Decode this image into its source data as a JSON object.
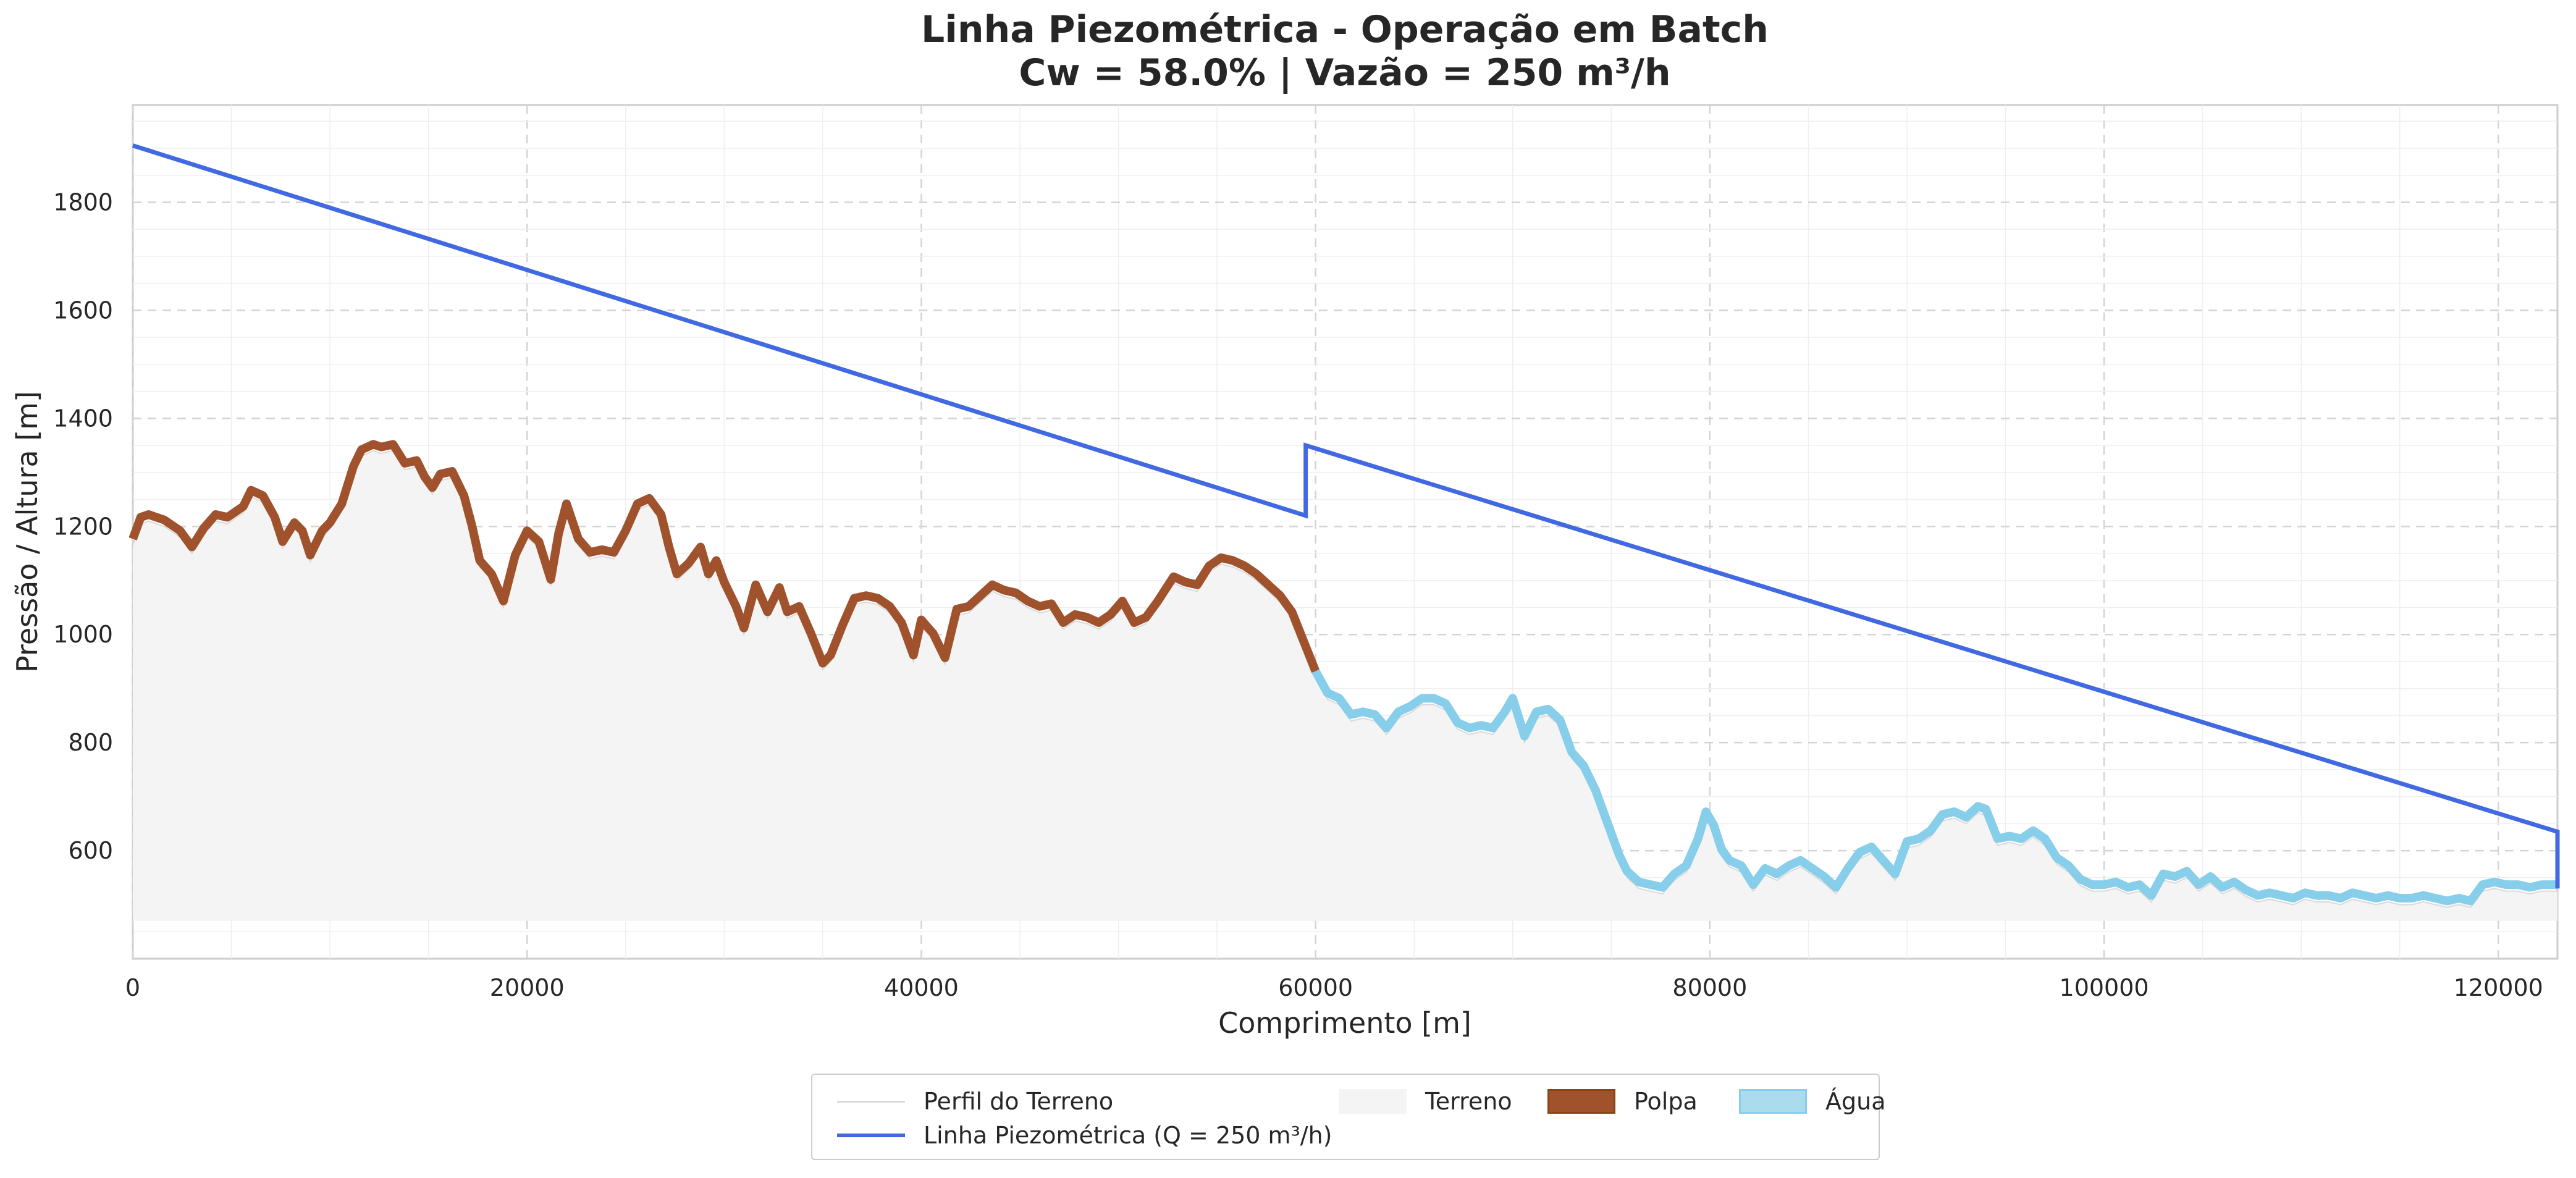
{
  "chart_data": {
    "type": "area",
    "title_line1": "Linha Piezométrica - Operação em Batch",
    "title_line2": "Cw = 58.0% | Vazão = 250 m³/h",
    "xlabel": "Comprimento [m]",
    "ylabel": "Pressão / Altura [m]",
    "xlim": [
      0,
      123000
    ],
    "ylim": [
      400,
      1980
    ],
    "x_ticks": [
      0,
      20000,
      40000,
      60000,
      80000,
      100000,
      120000
    ],
    "y_ticks": [
      600,
      800,
      1000,
      1200,
      1400,
      1600,
      1800
    ],
    "grid": true,
    "legend_position": "bottom-center, below axes",
    "terrain_base": 470,
    "pulp_end_x": 60000,
    "piezometric_line": {
      "name": "Linha Piezométrica (Q = 250 m³/h)",
      "points": [
        [
          0,
          1905
        ],
        [
          59500,
          1220
        ],
        [
          59500,
          1350
        ],
        [
          123000,
          635
        ],
        [
          123000,
          530
        ]
      ]
    },
    "terrain_profile": [
      [
        0,
        1165
      ],
      [
        400,
        1205
      ],
      [
        800,
        1210
      ],
      [
        1600,
        1200
      ],
      [
        2400,
        1180
      ],
      [
        3000,
        1150
      ],
      [
        3600,
        1185
      ],
      [
        4200,
        1210
      ],
      [
        4800,
        1205
      ],
      [
        5600,
        1225
      ],
      [
        6000,
        1255
      ],
      [
        6600,
        1245
      ],
      [
        7200,
        1205
      ],
      [
        7600,
        1160
      ],
      [
        8200,
        1195
      ],
      [
        8600,
        1180
      ],
      [
        9000,
        1135
      ],
      [
        9600,
        1180
      ],
      [
        10000,
        1195
      ],
      [
        10600,
        1230
      ],
      [
        11200,
        1300
      ],
      [
        11600,
        1330
      ],
      [
        12200,
        1340
      ],
      [
        12600,
        1335
      ],
      [
        13200,
        1340
      ],
      [
        13800,
        1305
      ],
      [
        14400,
        1310
      ],
      [
        14800,
        1280
      ],
      [
        15200,
        1260
      ],
      [
        15600,
        1285
      ],
      [
        16200,
        1290
      ],
      [
        16800,
        1245
      ],
      [
        17200,
        1190
      ],
      [
        17600,
        1125
      ],
      [
        18200,
        1100
      ],
      [
        18800,
        1050
      ],
      [
        19400,
        1135
      ],
      [
        20000,
        1180
      ],
      [
        20600,
        1160
      ],
      [
        21200,
        1090
      ],
      [
        21600,
        1175
      ],
      [
        22000,
        1230
      ],
      [
        22600,
        1165
      ],
      [
        23200,
        1140
      ],
      [
        23800,
        1145
      ],
      [
        24400,
        1140
      ],
      [
        25000,
        1180
      ],
      [
        25600,
        1230
      ],
      [
        26200,
        1240
      ],
      [
        26800,
        1210
      ],
      [
        27200,
        1150
      ],
      [
        27600,
        1100
      ],
      [
        28200,
        1120
      ],
      [
        28800,
        1150
      ],
      [
        29200,
        1100
      ],
      [
        29600,
        1125
      ],
      [
        30000,
        1085
      ],
      [
        30600,
        1040
      ],
      [
        31000,
        1000
      ],
      [
        31600,
        1080
      ],
      [
        32200,
        1030
      ],
      [
        32800,
        1075
      ],
      [
        33200,
        1030
      ],
      [
        33800,
        1040
      ],
      [
        34400,
        990
      ],
      [
        35000,
        935
      ],
      [
        35400,
        950
      ],
      [
        36000,
        1005
      ],
      [
        36600,
        1055
      ],
      [
        37200,
        1060
      ],
      [
        37800,
        1055
      ],
      [
        38400,
        1040
      ],
      [
        39000,
        1010
      ],
      [
        39600,
        950
      ],
      [
        40000,
        1015
      ],
      [
        40600,
        990
      ],
      [
        41200,
        945
      ],
      [
        41800,
        1035
      ],
      [
        42400,
        1040
      ],
      [
        43000,
        1060
      ],
      [
        43600,
        1080
      ],
      [
        44200,
        1070
      ],
      [
        44800,
        1065
      ],
      [
        45400,
        1050
      ],
      [
        46000,
        1040
      ],
      [
        46600,
        1045
      ],
      [
        47200,
        1010
      ],
      [
        47800,
        1025
      ],
      [
        48400,
        1020
      ],
      [
        49000,
        1010
      ],
      [
        49600,
        1025
      ],
      [
        50200,
        1050
      ],
      [
        50800,
        1010
      ],
      [
        51400,
        1020
      ],
      [
        52000,
        1050
      ],
      [
        52800,
        1095
      ],
      [
        53400,
        1085
      ],
      [
        54000,
        1080
      ],
      [
        54600,
        1115
      ],
      [
        55200,
        1130
      ],
      [
        55800,
        1125
      ],
      [
        56400,
        1115
      ],
      [
        57000,
        1100
      ],
      [
        57600,
        1080
      ],
      [
        58200,
        1060
      ],
      [
        58800,
        1030
      ],
      [
        59400,
        975
      ],
      [
        60000,
        920
      ],
      [
        60600,
        880
      ],
      [
        61200,
        870
      ],
      [
        61800,
        840
      ],
      [
        62400,
        845
      ],
      [
        63000,
        840
      ],
      [
        63600,
        815
      ],
      [
        64200,
        845
      ],
      [
        64800,
        855
      ],
      [
        65400,
        870
      ],
      [
        66000,
        870
      ],
      [
        66600,
        860
      ],
      [
        67200,
        825
      ],
      [
        67800,
        815
      ],
      [
        68400,
        820
      ],
      [
        69000,
        815
      ],
      [
        69600,
        845
      ],
      [
        70000,
        870
      ],
      [
        70600,
        800
      ],
      [
        71200,
        845
      ],
      [
        71800,
        850
      ],
      [
        72400,
        830
      ],
      [
        73000,
        770
      ],
      [
        73600,
        745
      ],
      [
        74200,
        700
      ],
      [
        74800,
        640
      ],
      [
        75400,
        580
      ],
      [
        75800,
        550
      ],
      [
        76400,
        530
      ],
      [
        77000,
        525
      ],
      [
        77600,
        520
      ],
      [
        78200,
        545
      ],
      [
        78800,
        560
      ],
      [
        79400,
        610
      ],
      [
        79800,
        660
      ],
      [
        80200,
        635
      ],
      [
        80600,
        590
      ],
      [
        81000,
        570
      ],
      [
        81600,
        560
      ],
      [
        82200,
        525
      ],
      [
        82800,
        555
      ],
      [
        83400,
        545
      ],
      [
        84000,
        560
      ],
      [
        84600,
        570
      ],
      [
        85200,
        555
      ],
      [
        85800,
        540
      ],
      [
        86400,
        520
      ],
      [
        87000,
        555
      ],
      [
        87600,
        585
      ],
      [
        88200,
        595
      ],
      [
        88800,
        570
      ],
      [
        89400,
        545
      ],
      [
        90000,
        605
      ],
      [
        90600,
        610
      ],
      [
        91200,
        625
      ],
      [
        91800,
        655
      ],
      [
        92400,
        660
      ],
      [
        93000,
        650
      ],
      [
        93600,
        670
      ],
      [
        94000,
        665
      ],
      [
        94600,
        610
      ],
      [
        95200,
        615
      ],
      [
        95800,
        610
      ],
      [
        96400,
        625
      ],
      [
        97000,
        610
      ],
      [
        97600,
        575
      ],
      [
        98200,
        560
      ],
      [
        98800,
        535
      ],
      [
        99400,
        525
      ],
      [
        100000,
        525
      ],
      [
        100600,
        530
      ],
      [
        101200,
        520
      ],
      [
        101800,
        525
      ],
      [
        102400,
        505
      ],
      [
        103000,
        545
      ],
      [
        103600,
        540
      ],
      [
        104200,
        550
      ],
      [
        104800,
        525
      ],
      [
        105400,
        540
      ],
      [
        106000,
        520
      ],
      [
        106600,
        530
      ],
      [
        107200,
        515
      ],
      [
        107800,
        505
      ],
      [
        108400,
        510
      ],
      [
        109000,
        505
      ],
      [
        109600,
        500
      ],
      [
        110200,
        510
      ],
      [
        110800,
        505
      ],
      [
        111400,
        505
      ],
      [
        112000,
        500
      ],
      [
        112600,
        510
      ],
      [
        113200,
        505
      ],
      [
        113800,
        500
      ],
      [
        114400,
        505
      ],
      [
        115000,
        500
      ],
      [
        115600,
        500
      ],
      [
        116200,
        505
      ],
      [
        116800,
        500
      ],
      [
        117400,
        495
      ],
      [
        118000,
        500
      ],
      [
        118600,
        495
      ],
      [
        119200,
        525
      ],
      [
        119800,
        530
      ],
      [
        120400,
        525
      ],
      [
        121000,
        525
      ],
      [
        121600,
        520
      ],
      [
        122200,
        525
      ],
      [
        123000,
        525
      ]
    ],
    "legend": [
      {
        "label": "Perfil do Terreno",
        "kind": "line",
        "color": "#d9d9d9"
      },
      {
        "label": "Linha Piezométrica (Q = 250 m³/h)",
        "kind": "line",
        "color": "#4169e1"
      },
      {
        "label": "Terreno",
        "kind": "patch",
        "color": "#f4f4f4"
      },
      {
        "label": "Polpa",
        "kind": "patch",
        "color": "#a0522d"
      },
      {
        "label": "Água",
        "kind": "patch",
        "color": "#87ceeb"
      }
    ],
    "colors": {
      "terrain_fill": "#f4f4f4",
      "terrain_line": "#d9d9d9",
      "pulp": "#a0522d",
      "pulp_edge": "#8b4513",
      "water": "#87ceeb",
      "piezometric": "#4169e1"
    }
  }
}
